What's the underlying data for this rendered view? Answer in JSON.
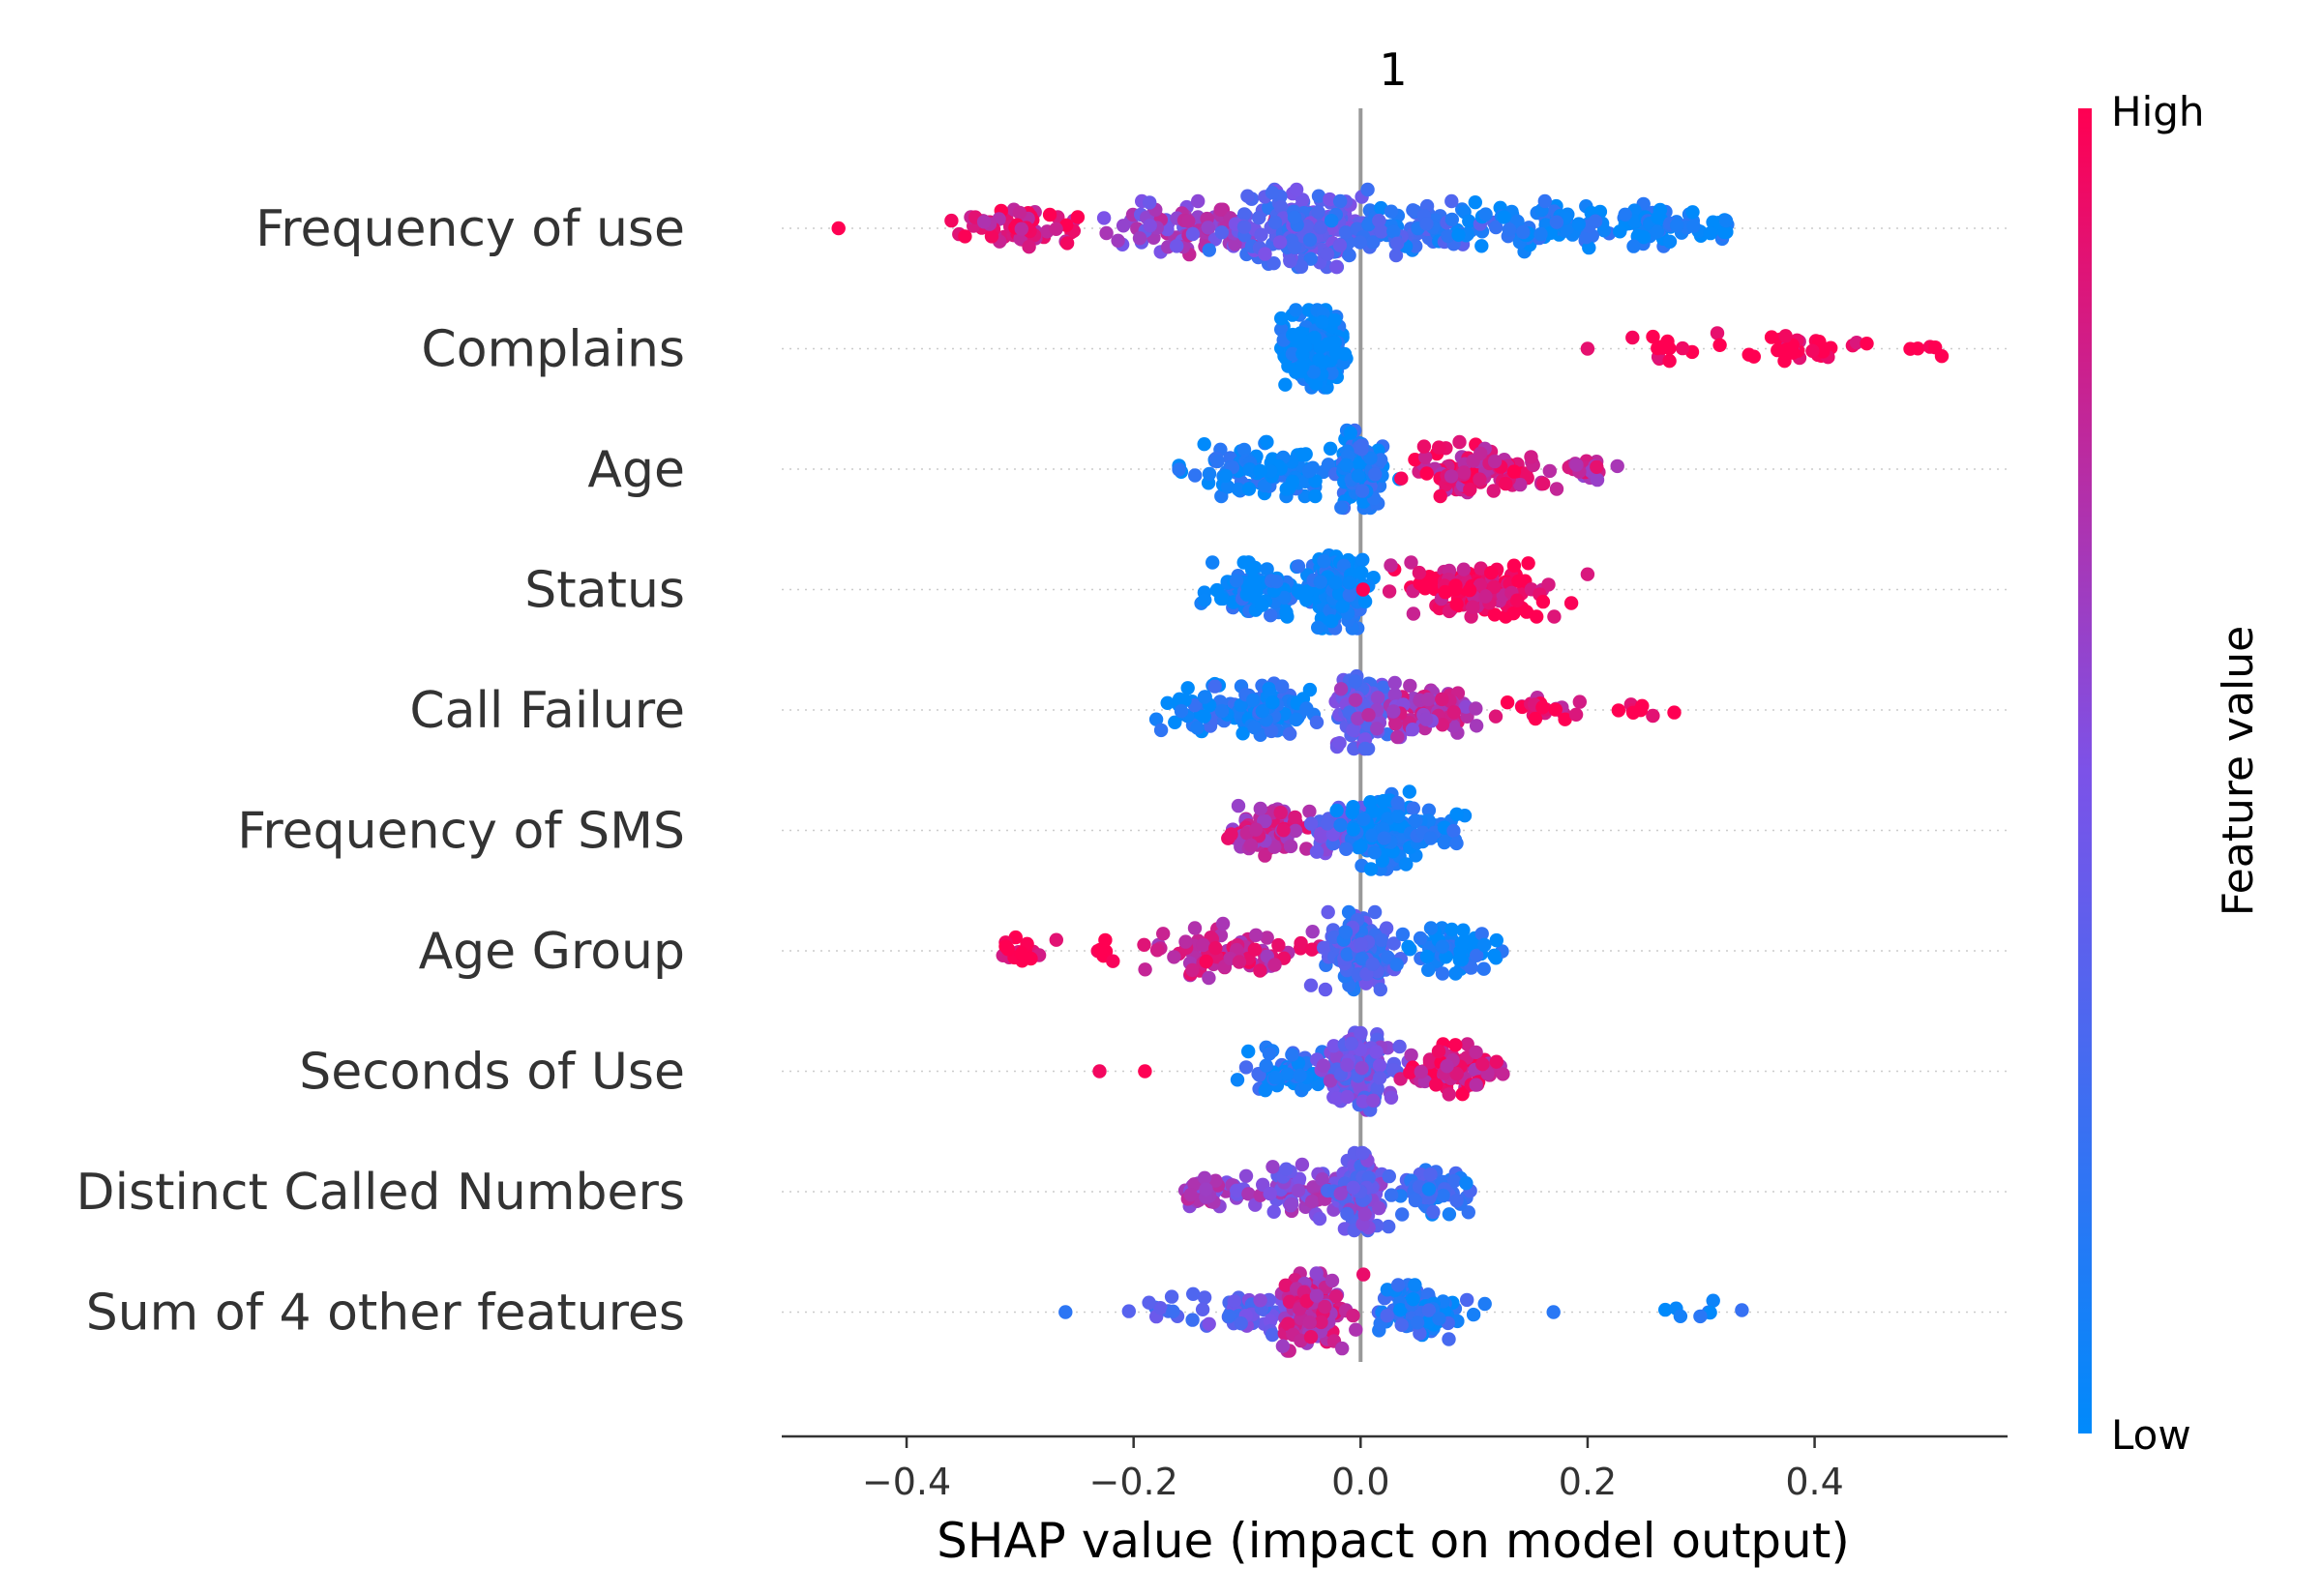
{
  "chart_data": {
    "type": "scatter",
    "subtype": "shap-beeswarm",
    "title": "1",
    "xlabel": "SHAP value (impact on model output)",
    "xlim": [
      -0.51,
      0.57
    ],
    "xticks": [
      -0.4,
      -0.2,
      0.0,
      0.2,
      0.4
    ],
    "xtick_labels": [
      "−0.4",
      "−0.2",
      "0.0",
      "0.2",
      "0.4"
    ],
    "zero_line": true,
    "grid": false,
    "features": [
      {
        "name": "Frequency of use",
        "min": -0.46,
        "max": 0.34,
        "clusters": [
          {
            "x": -0.46,
            "spread": 0.005,
            "n": 1,
            "h": 0.95
          },
          {
            "x": -0.3,
            "spread": 0.065,
            "n": 60,
            "h": 0.85
          },
          {
            "x": -0.15,
            "spread": 0.07,
            "n": 90,
            "h": 0.6
          },
          {
            "x": -0.05,
            "spread": 0.05,
            "n": 200,
            "h": 0.35,
            "dense": true
          },
          {
            "x": 0.05,
            "spread": 0.06,
            "n": 90,
            "h": 0.2
          },
          {
            "x": 0.17,
            "spread": 0.08,
            "n": 90,
            "h": 0.05
          },
          {
            "x": 0.25,
            "spread": 0.02,
            "n": 40,
            "h": 0.03
          },
          {
            "x": 0.3,
            "spread": 0.04,
            "n": 30,
            "h": 0.02
          }
        ]
      },
      {
        "name": "Complains",
        "min": -0.07,
        "max": 0.53,
        "clusters": [
          {
            "x": -0.04,
            "spread": 0.025,
            "n": 260,
            "h": 0.0,
            "dense": true
          },
          {
            "x": 0.2,
            "spread": 0.002,
            "n": 1,
            "h": 1.0
          },
          {
            "x": 0.27,
            "spread": 0.03,
            "n": 12,
            "h": 1.0
          },
          {
            "x": 0.38,
            "spread": 0.06,
            "n": 30,
            "h": 1.0
          },
          {
            "x": 0.49,
            "spread": 0.03,
            "n": 6,
            "h": 1.0
          }
        ]
      },
      {
        "name": "Age",
        "min": -0.16,
        "max": 0.24,
        "clusters": [
          {
            "x": -0.08,
            "spread": 0.07,
            "n": 120,
            "h": 0.05
          },
          {
            "x": 0.0,
            "spread": 0.02,
            "n": 120,
            "h": 0.1,
            "dense": true
          },
          {
            "x": 0.1,
            "spread": 0.06,
            "n": 110,
            "h": 0.85
          },
          {
            "x": 0.2,
            "spread": 0.03,
            "n": 20,
            "h": 0.75
          }
        ]
      },
      {
        "name": "Status",
        "min": -0.15,
        "max": 0.2,
        "clusters": [
          {
            "x": -0.09,
            "spread": 0.05,
            "n": 100,
            "h": 0.05
          },
          {
            "x": -0.02,
            "spread": 0.025,
            "n": 220,
            "h": 0.05,
            "dense": true
          },
          {
            "x": 0.1,
            "spread": 0.07,
            "n": 130,
            "h": 0.95
          }
        ]
      },
      {
        "name": "Call  Failure",
        "min": -0.18,
        "max": 0.28,
        "clusters": [
          {
            "x": -0.1,
            "spread": 0.07,
            "n": 130,
            "h": 0.1
          },
          {
            "x": 0.0,
            "spread": 0.02,
            "n": 120,
            "h": 0.4,
            "dense": true
          },
          {
            "x": 0.06,
            "spread": 0.05,
            "n": 90,
            "h": 0.7
          },
          {
            "x": 0.16,
            "spread": 0.04,
            "n": 20,
            "h": 0.9
          },
          {
            "x": 0.25,
            "spread": 0.03,
            "n": 8,
            "h": 1.0
          }
        ]
      },
      {
        "name": "Frequency of SMS",
        "min": -0.14,
        "max": 0.1,
        "clusters": [
          {
            "x": -0.08,
            "spread": 0.04,
            "n": 90,
            "h": 0.75
          },
          {
            "x": -0.02,
            "spread": 0.02,
            "n": 60,
            "h": 0.4
          },
          {
            "x": 0.02,
            "spread": 0.03,
            "n": 150,
            "h": 0.05,
            "dense": true
          },
          {
            "x": 0.07,
            "spread": 0.025,
            "n": 30,
            "h": 0.05
          }
        ]
      },
      {
        "name": "Age Group",
        "min": -0.32,
        "max": 0.13,
        "clusters": [
          {
            "x": -0.3,
            "spread": 0.02,
            "n": 20,
            "h": 1.0
          },
          {
            "x": -0.23,
            "spread": 0.01,
            "n": 6,
            "h": 1.0
          },
          {
            "x": -0.12,
            "spread": 0.06,
            "n": 90,
            "h": 0.8
          },
          {
            "x": 0.0,
            "spread": 0.03,
            "n": 160,
            "h": 0.3,
            "dense": true
          },
          {
            "x": 0.08,
            "spread": 0.04,
            "n": 60,
            "h": 0.05
          }
        ]
      },
      {
        "name": "Seconds of Use",
        "min": -0.23,
        "max": 0.15,
        "clusters": [
          {
            "x": -0.23,
            "spread": 0.003,
            "n": 1,
            "h": 1.0
          },
          {
            "x": -0.19,
            "spread": 0.003,
            "n": 1,
            "h": 1.0
          },
          {
            "x": -0.06,
            "spread": 0.04,
            "n": 70,
            "h": 0.15
          },
          {
            "x": 0.0,
            "spread": 0.03,
            "n": 150,
            "h": 0.45,
            "dense": true
          },
          {
            "x": 0.08,
            "spread": 0.04,
            "n": 80,
            "h": 0.85
          }
        ]
      },
      {
        "name": "Distinct Called Numbers",
        "min": -0.18,
        "max": 0.12,
        "clusters": [
          {
            "x": -0.13,
            "spread": 0.03,
            "n": 40,
            "h": 0.6
          },
          {
            "x": -0.04,
            "spread": 0.04,
            "n": 80,
            "h": 0.55
          },
          {
            "x": 0.0,
            "spread": 0.02,
            "n": 140,
            "h": 0.45,
            "dense": true
          },
          {
            "x": 0.06,
            "spread": 0.035,
            "n": 60,
            "h": 0.2
          }
        ]
      },
      {
        "name": "Sum of 4 other features",
        "min": -0.26,
        "max": 0.35,
        "clusters": [
          {
            "x": -0.26,
            "spread": 0.003,
            "n": 1,
            "h": 0.05
          },
          {
            "x": -0.18,
            "spread": 0.02,
            "n": 8,
            "h": 0.4
          },
          {
            "x": -0.1,
            "spread": 0.04,
            "n": 60,
            "h": 0.4
          },
          {
            "x": -0.04,
            "spread": 0.03,
            "n": 140,
            "h": 0.75,
            "dense": true
          },
          {
            "x": 0.05,
            "spread": 0.04,
            "n": 90,
            "h": 0.15
          },
          {
            "x": 0.17,
            "spread": 0.003,
            "n": 1,
            "h": 0.05
          },
          {
            "x": 0.29,
            "spread": 0.04,
            "n": 8,
            "h": 0.05
          }
        ]
      }
    ],
    "colorbar": {
      "title": "Feature value",
      "high_label": "High",
      "low_label": "Low",
      "low_color": "#008afb",
      "mid_color": "#7c52e8",
      "high_color": "#ff0052"
    }
  }
}
